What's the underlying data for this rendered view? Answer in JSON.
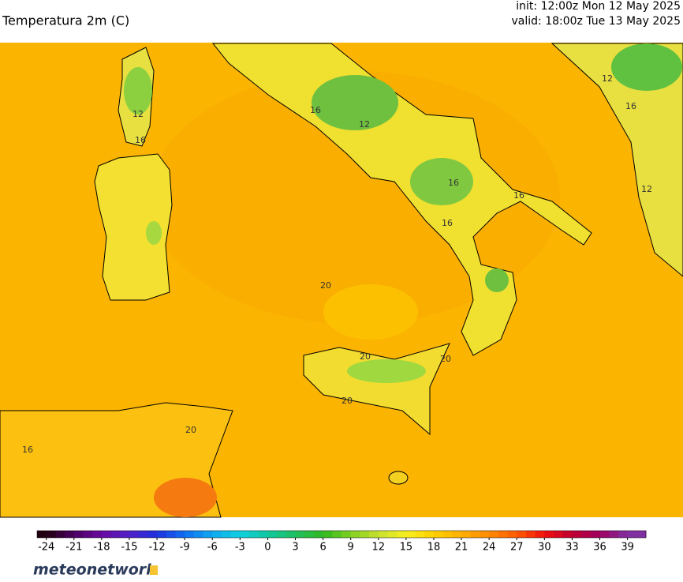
{
  "header": {
    "title": "Temperatura 2m (C)",
    "init": "init: 12:00z Mon 12 May 2025",
    "valid": "valid: 18:00z Tue 13 May 2025"
  },
  "map": {
    "contour_labels": [
      "12",
      "16",
      "16",
      "12",
      "16",
      "16",
      "12",
      "16",
      "20",
      "20",
      "20",
      "20",
      "16",
      "16",
      "12",
      "20"
    ]
  },
  "colorbar": {
    "lim": [
      -25,
      41
    ],
    "ticks": [
      -24,
      -21,
      -18,
      -15,
      -12,
      -9,
      -6,
      -3,
      0,
      3,
      6,
      9,
      12,
      15,
      18,
      21,
      24,
      27,
      30,
      33,
      36,
      39
    ],
    "colors": [
      "#200010",
      "#4b0060",
      "#6a0aa0",
      "#5020c8",
      "#2030e0",
      "#1070f0",
      "#10a8f0",
      "#10d0e0",
      "#10c8a0",
      "#20c060",
      "#30b820",
      "#80d020",
      "#c8e030",
      "#f8f020",
      "#ffd000",
      "#ffb000",
      "#ff8a00",
      "#ff5a00",
      "#f01010",
      "#c00030",
      "#a00060",
      "#8030a0"
    ]
  },
  "footer": {
    "logo": "meteonetwork"
  }
}
